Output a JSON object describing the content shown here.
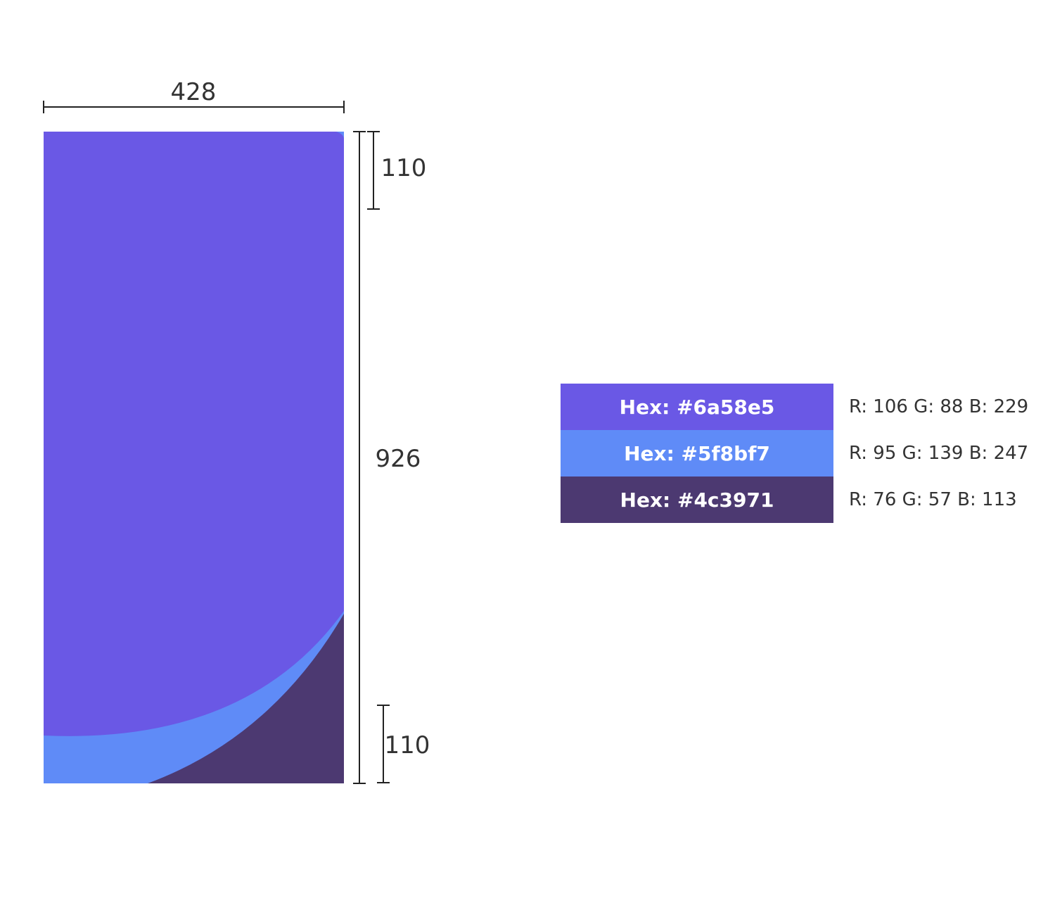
{
  "dimensions": {
    "width_label": "428",
    "height_label": "926",
    "top_margin_label": "110",
    "bottom_margin_label": "110"
  },
  "palette": [
    {
      "hex_label": "Hex: #6a58e5",
      "rgb_label": "R: 106 G: 88 B: 229",
      "color": "#6a58e5"
    },
    {
      "hex_label": "Hex: #5f8bf7",
      "rgb_label": "R: 95 G: 139 B: 247",
      "color": "#5f8bf7"
    },
    {
      "hex_label": "Hex: #4c3971",
      "rgb_label": "R: 76 G: 57 B: 113",
      "color": "#4c3971"
    }
  ]
}
